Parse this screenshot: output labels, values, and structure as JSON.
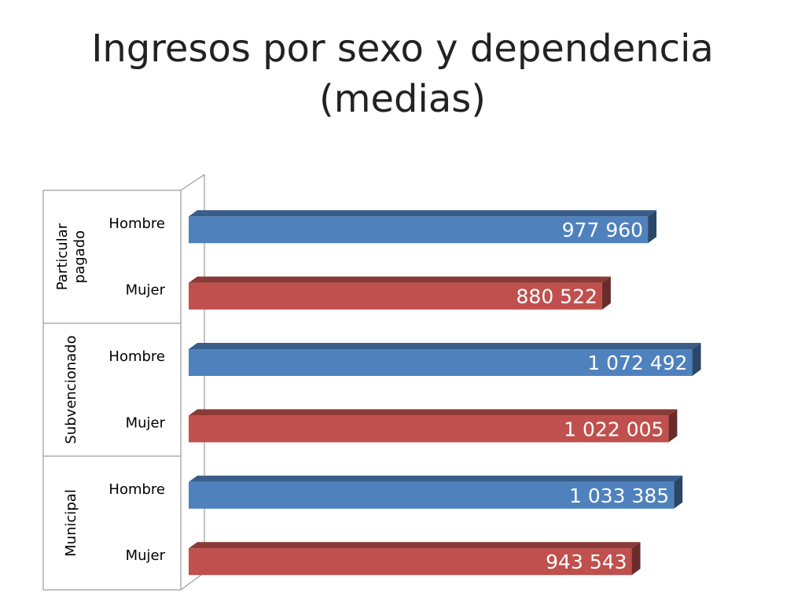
{
  "title": {
    "line1": "Ingresos por sexo y dependencia",
    "line2": "(medias)"
  },
  "chart_data": {
    "type": "bar",
    "orientation": "horizontal",
    "title": "Ingresos por sexo y dependencia (medias)",
    "groups": [
      {
        "label": "Particular pagado",
        "lines": [
          "Particular",
          "pagado"
        ]
      },
      {
        "label": "Subvencionado",
        "lines": [
          "Subvencionado"
        ]
      },
      {
        "label": "Municipal",
        "lines": [
          "Municipal"
        ]
      }
    ],
    "categories": [
      {
        "group": "Particular pagado",
        "label": "Hombre",
        "value": 977960,
        "value_label": "977 960",
        "color": "#4F81BD"
      },
      {
        "group": "Particular pagado",
        "label": "Mujer",
        "value": 880522,
        "value_label": "880 522",
        "color": "#C0504D"
      },
      {
        "group": "Subvencionado",
        "label": "Hombre",
        "value": 1072492,
        "value_label": "1 072 492",
        "color": "#4F81BD"
      },
      {
        "group": "Subvencionado",
        "label": "Mujer",
        "value": 1022005,
        "value_label": "1 022 005",
        "color": "#C0504D"
      },
      {
        "group": "Municipal",
        "label": "Hombre",
        "value": 1033385,
        "value_label": "1 033 385",
        "color": "#4F81BD"
      },
      {
        "group": "Municipal",
        "label": "Mujer",
        "value": 943543,
        "value_label": "943 543",
        "color": "#C0504D"
      }
    ],
    "xlim": [
      0,
      1100000
    ],
    "grid": false,
    "legend": "none",
    "colors": {
      "hombre": "#4F81BD",
      "mujer": "#C0504D",
      "value_text": "#ffffff",
      "axis": "#868686"
    }
  }
}
